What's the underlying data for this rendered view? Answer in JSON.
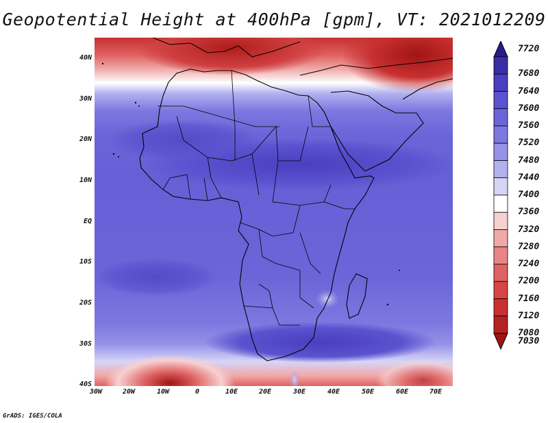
{
  "title": "Geopotential Height at 400hPa [gpm], VT: 2021012209",
  "credit": "GrADS: IGES/COLA",
  "map": {
    "variable": "Geopotential Height",
    "level": "400hPa",
    "units": "gpm",
    "valid_time": "2021012209",
    "lat_labels": [
      "40N",
      "30N",
      "20N",
      "10N",
      "EQ",
      "10S",
      "20S",
      "30S",
      "40S"
    ],
    "lon_labels": [
      "30W",
      "20W",
      "10W",
      "0",
      "10E",
      "20E",
      "30E",
      "40E",
      "50E",
      "60E",
      "70E"
    ]
  },
  "colorbar": {
    "levels": [
      "7720",
      "7680",
      "7640",
      "7600",
      "7560",
      "7520",
      "7480",
      "7440",
      "7400",
      "7360",
      "7320",
      "7280",
      "7240",
      "7200",
      "7160",
      "7120",
      "7080",
      "7030"
    ],
    "colors": [
      "#2b1a8c",
      "#3a2da6",
      "#4a3fbf",
      "#5a52cf",
      "#6a65d8",
      "#7c78e0",
      "#9592e8",
      "#b3b1f0",
      "#d6d5f7",
      "#ffffff",
      "#f7d0d0",
      "#f0a9a9",
      "#e98585",
      "#e06262",
      "#d84545",
      "#c83030",
      "#b52222",
      "#9e1414"
    ]
  }
}
